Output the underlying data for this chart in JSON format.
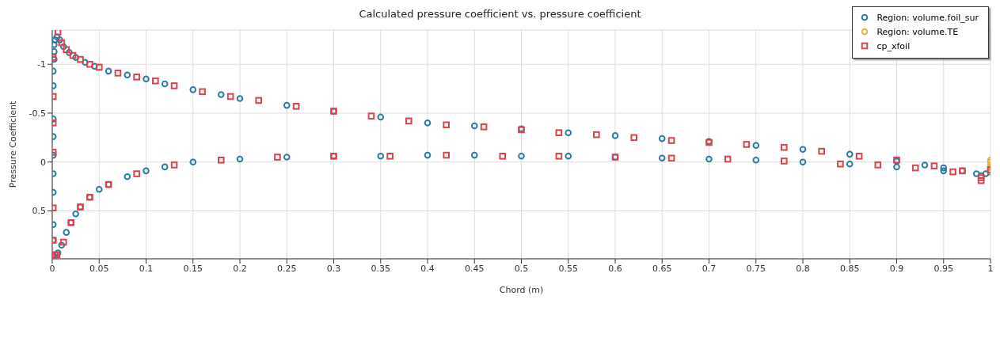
{
  "chart_data": {
    "type": "scatter",
    "title": "Calculated pressure coefficient vs. pressure coefficient",
    "xlabel": "Chord (m)",
    "ylabel": "Pressure Coefficient",
    "xlim": [
      0,
      1
    ],
    "xticks": [
      0,
      0.05,
      0.1,
      0.15,
      0.2,
      0.25,
      0.3,
      0.35,
      0.4,
      0.45,
      0.5,
      0.55,
      0.6,
      0.65,
      0.7,
      0.75,
      0.8,
      0.85,
      0.9,
      0.95,
      1
    ],
    "ylim": [
      0.99,
      -1.35
    ],
    "yticks": [
      -1,
      -0.5,
      0,
      0.5
    ],
    "grid": true,
    "legend": "top right",
    "series": [
      {
        "name": "Region: volume.foil_sur",
        "color": "#2b7c9f",
        "marker": "circle",
        "x": [
          0.001,
          0.001,
          0.001,
          0.001,
          0.001,
          0.001,
          0.001,
          0.001,
          0.001,
          0.001,
          0.002,
          0.002,
          0.002,
          0.003,
          0.005,
          0.008,
          0.012,
          0.018,
          0.025,
          0.035,
          0.045,
          0.06,
          0.08,
          0.1,
          0.12,
          0.15,
          0.18,
          0.2,
          0.25,
          0.3,
          0.35,
          0.4,
          0.45,
          0.5,
          0.55,
          0.6,
          0.65,
          0.7,
          0.75,
          0.8,
          0.85,
          0.9,
          0.93,
          0.95,
          0.97,
          0.985,
          0.995,
          1.0,
          0.002,
          0.006,
          0.01,
          0.015,
          0.02,
          0.025,
          0.03,
          0.04,
          0.05,
          0.06,
          0.08,
          0.1,
          0.12,
          0.15,
          0.2,
          0.25,
          0.3,
          0.35,
          0.4,
          0.45,
          0.5,
          0.55,
          0.6,
          0.65,
          0.7,
          0.75,
          0.8,
          0.85,
          0.9,
          0.95,
          0.99
        ],
        "values": [
          0.95,
          0.8,
          0.64,
          0.31,
          0.12,
          -0.07,
          -0.26,
          -0.44,
          -0.78,
          -0.93,
          -1.05,
          -1.13,
          -1.2,
          -1.25,
          -1.28,
          -1.25,
          -1.18,
          -1.12,
          -1.07,
          -1.02,
          -0.98,
          -0.93,
          -0.89,
          -0.85,
          -0.8,
          -0.74,
          -0.69,
          -0.65,
          -0.58,
          -0.52,
          -0.46,
          -0.4,
          -0.37,
          -0.34,
          -0.3,
          -0.27,
          -0.24,
          -0.21,
          -0.17,
          -0.13,
          -0.08,
          -0.01,
          0.03,
          0.06,
          0.09,
          0.12,
          0.12,
          0.1,
          0.97,
          0.93,
          0.85,
          0.72,
          0.62,
          0.53,
          0.46,
          0.36,
          0.28,
          0.23,
          0.15,
          0.09,
          0.05,
          0.0,
          -0.03,
          -0.05,
          -0.06,
          -0.06,
          -0.07,
          -0.07,
          -0.06,
          -0.06,
          -0.05,
          -0.04,
          -0.03,
          -0.02,
          0.0,
          0.02,
          0.05,
          0.09,
          0.14
        ]
      },
      {
        "name": "Region: volume.TE",
        "color": "#e3b042",
        "marker": "circle",
        "x": [
          1.0,
          1.0,
          1.0,
          1.0,
          1.0
        ],
        "values": [
          -0.02,
          0.0,
          0.03,
          0.06,
          0.09
        ]
      },
      {
        "name": "cp_xfoil",
        "color": "#d9434c",
        "marker": "square",
        "x": [
          0.001,
          0.001,
          0.001,
          0.001,
          0.001,
          0.001,
          0.003,
          0.006,
          0.01,
          0.015,
          0.022,
          0.03,
          0.04,
          0.05,
          0.07,
          0.09,
          0.11,
          0.13,
          0.16,
          0.19,
          0.22,
          0.26,
          0.3,
          0.34,
          0.38,
          0.42,
          0.46,
          0.5,
          0.54,
          0.58,
          0.62,
          0.66,
          0.7,
          0.74,
          0.78,
          0.82,
          0.86,
          0.9,
          0.94,
          0.97,
          0.99,
          1.0,
          0.005,
          0.012,
          0.02,
          0.03,
          0.04,
          0.06,
          0.09,
          0.13,
          0.18,
          0.24,
          0.3,
          0.36,
          0.42,
          0.48,
          0.54,
          0.6,
          0.66,
          0.72,
          0.78,
          0.84,
          0.88,
          0.92,
          0.96,
          0.99
        ],
        "values": [
          -1.07,
          -0.67,
          -0.4,
          -0.1,
          0.47,
          0.8,
          0.95,
          -1.33,
          -1.22,
          -1.15,
          -1.09,
          -1.05,
          -1.0,
          -0.97,
          -0.91,
          -0.87,
          -0.83,
          -0.78,
          -0.72,
          -0.67,
          -0.63,
          -0.57,
          -0.52,
          -0.47,
          -0.42,
          -0.38,
          -0.36,
          -0.33,
          -0.3,
          -0.28,
          -0.25,
          -0.22,
          -0.2,
          -0.18,
          -0.15,
          -0.11,
          -0.06,
          -0.02,
          0.04,
          0.09,
          0.19,
          0.08,
          0.95,
          0.82,
          0.62,
          0.46,
          0.36,
          0.23,
          0.12,
          0.03,
          -0.02,
          -0.05,
          -0.06,
          -0.06,
          -0.07,
          -0.06,
          -0.06,
          -0.05,
          -0.04,
          -0.03,
          -0.01,
          0.02,
          0.03,
          0.06,
          0.1,
          0.16
        ]
      }
    ]
  }
}
